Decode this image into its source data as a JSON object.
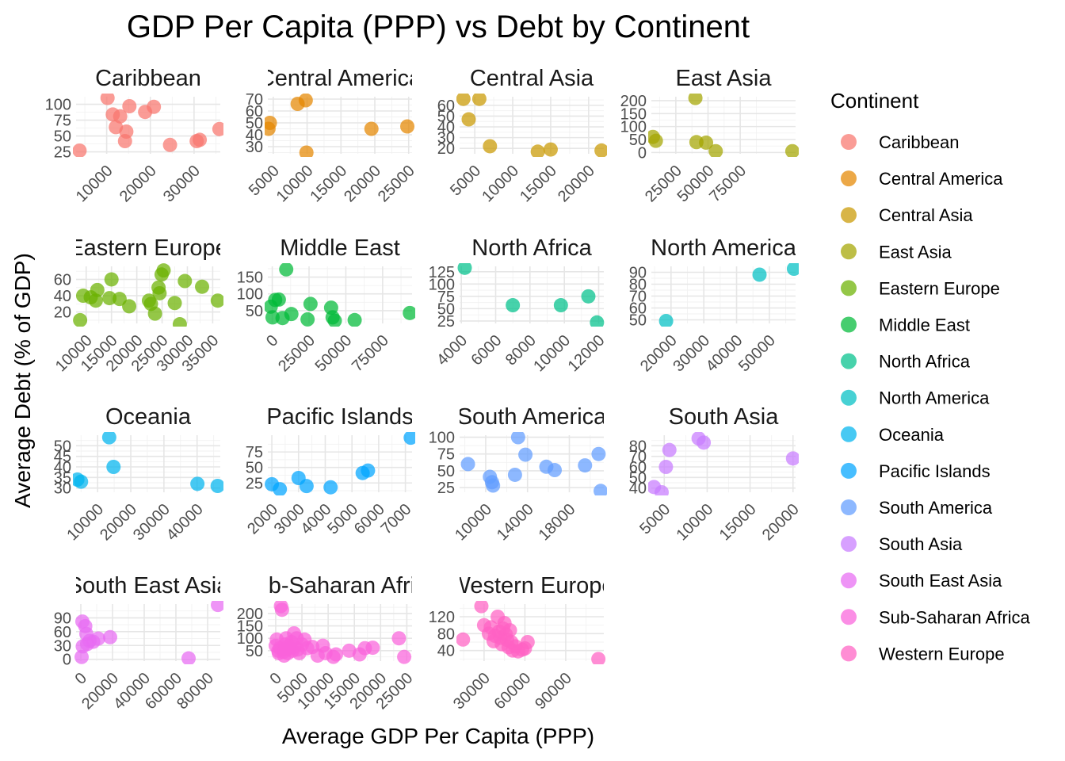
{
  "chart_data": {
    "type": "scatter",
    "title": "GDP Per Capita (PPP) vs Debt by Continent",
    "xlabel": "Average GDP Per Capita (PPP)",
    "ylabel": "Average Debt (% of GDP)",
    "legend_title": "Continent",
    "legend_position": "right",
    "grid": true,
    "facets": [
      {
        "name": "Caribbean",
        "color": "#F8766D",
        "xlim": [
          3000,
          36000
        ],
        "ylim": [
          22,
          112
        ],
        "xticks": [
          10000,
          20000,
          30000
        ],
        "yticks": [
          25,
          50,
          75,
          100
        ],
        "points": [
          [
            3800,
            27
          ],
          [
            10200,
            110
          ],
          [
            11400,
            84
          ],
          [
            12100,
            64
          ],
          [
            13100,
            81
          ],
          [
            14200,
            42
          ],
          [
            14500,
            57
          ],
          [
            15200,
            97
          ],
          [
            18800,
            88
          ],
          [
            20800,
            96
          ],
          [
            24500,
            36
          ],
          [
            30600,
            42
          ],
          [
            31300,
            44
          ],
          [
            35800,
            61
          ]
        ]
      },
      {
        "name": "Central America",
        "color": "#E58700",
        "xlim": [
          4200,
          25500
        ],
        "ylim": [
          24,
          72
        ],
        "xticks": [
          5000,
          10000,
          15000,
          20000,
          25000
        ],
        "yticks": [
          30,
          40,
          50,
          60,
          70
        ],
        "points": [
          [
            4300,
            45
          ],
          [
            4500,
            50
          ],
          [
            8600,
            66
          ],
          [
            9800,
            69
          ],
          [
            9900,
            25
          ],
          [
            19500,
            45
          ],
          [
            24800,
            47
          ]
        ]
      },
      {
        "name": "Central Asia",
        "color": "#C99800",
        "xlim": [
          3000,
          22000
        ],
        "ylim": [
          15,
          68
        ],
        "xticks": [
          5000,
          10000,
          15000,
          20000
        ],
        "yticks": [
          20,
          30,
          40,
          50,
          60
        ],
        "points": [
          [
            3500,
            66
          ],
          [
            4200,
            47
          ],
          [
            5600,
            66
          ],
          [
            7000,
            22
          ],
          [
            13300,
            17
          ],
          [
            15000,
            19
          ],
          [
            21700,
            18
          ]
        ]
      },
      {
        "name": "East Asia",
        "color": "#A3A500",
        "xlim": [
          6000,
          118000
        ],
        "ylim": [
          -5,
          215
        ],
        "xticks": [
          25000,
          50000,
          75000
        ],
        "yticks": [
          0,
          50,
          100,
          150,
          200
        ],
        "points": [
          [
            7200,
            60
          ],
          [
            9500,
            45
          ],
          [
            40200,
            210
          ],
          [
            41000,
            40
          ],
          [
            48500,
            38
          ],
          [
            56000,
            5
          ],
          [
            115500,
            5
          ]
        ]
      },
      {
        "name": "Eastern Europe",
        "color": "#6BB100",
        "xlim": [
          8000,
          36500
        ],
        "ylim": [
          6,
          76
        ],
        "xticks": [
          10000,
          15000,
          20000,
          25000,
          30000,
          35000
        ],
        "yticks": [
          20,
          40,
          60
        ],
        "points": [
          [
            8800,
            10
          ],
          [
            9400,
            40
          ],
          [
            10900,
            38
          ],
          [
            11900,
            34
          ],
          [
            12200,
            47
          ],
          [
            14600,
            37
          ],
          [
            15000,
            60
          ],
          [
            16600,
            36
          ],
          [
            18500,
            27
          ],
          [
            22400,
            34
          ],
          [
            22800,
            30
          ],
          [
            23600,
            18
          ],
          [
            24300,
            50
          ],
          [
            24500,
            43
          ],
          [
            24900,
            66
          ],
          [
            25300,
            71
          ],
          [
            27500,
            31
          ],
          [
            28500,
            5
          ],
          [
            29500,
            58
          ],
          [
            32900,
            51
          ],
          [
            36000,
            34
          ]
        ]
      },
      {
        "name": "Middle East",
        "color": "#00BA38",
        "xlim": [
          -3000,
          95000
        ],
        "ylim": [
          12,
          182
        ],
        "xticks": [
          0,
          25000,
          50000,
          75000
        ],
        "yticks": [
          50,
          100,
          150
        ],
        "points": [
          [
            -1000,
            62
          ],
          [
            200,
            30
          ],
          [
            2000,
            82
          ],
          [
            4500,
            83
          ],
          [
            7000,
            28
          ],
          [
            9500,
            173
          ],
          [
            13000,
            40
          ],
          [
            24000,
            24
          ],
          [
            26000,
            70
          ],
          [
            40000,
            59
          ],
          [
            41000,
            30
          ],
          [
            42500,
            20
          ],
          [
            56000,
            22
          ],
          [
            93500,
            43
          ]
        ]
      },
      {
        "name": "North Africa",
        "color": "#00C08B",
        "xlim": [
          3900,
          12300
        ],
        "ylim": [
          20,
          136
        ],
        "xticks": [
          4000,
          6000,
          8000,
          10000,
          12000
        ],
        "yticks": [
          25,
          50,
          75,
          100,
          125
        ],
        "points": [
          [
            4200,
            133
          ],
          [
            7000,
            57
          ],
          [
            9800,
            57
          ],
          [
            11400,
            75
          ],
          [
            11900,
            22
          ]
        ]
      },
      {
        "name": "North America",
        "color": "#00BFC4",
        "xlim": [
          14000,
          58000
        ],
        "ylim": [
          47,
          95
        ],
        "xticks": [
          20000,
          30000,
          40000,
          50000
        ],
        "yticks": [
          50,
          60,
          70,
          80,
          90
        ],
        "points": [
          [
            18500,
            49
          ],
          [
            47000,
            88
          ],
          [
            57500,
            93
          ]
        ]
      },
      {
        "name": "Oceania",
        "color": "#00B4EF",
        "xlim": [
          3500,
          47000
        ],
        "ylim": [
          28,
          55
        ],
        "xticks": [
          10000,
          20000,
          30000,
          40000
        ],
        "yticks": [
          30,
          35,
          40,
          45,
          50
        ],
        "points": [
          [
            3900,
            34
          ],
          [
            5000,
            33
          ],
          [
            13500,
            54
          ],
          [
            14800,
            40
          ],
          [
            40100,
            32
          ],
          [
            46200,
            31
          ]
        ]
      },
      {
        "name": "Pacific Islands",
        "color": "#00A5FF",
        "xlim": [
          1850,
          7250
        ],
        "ylim": [
          10,
          102
        ],
        "xticks": [
          2000,
          3000,
          4000,
          5000,
          6000,
          7000
        ],
        "yticks": [
          25,
          50,
          75
        ],
        "points": [
          [
            2000,
            23
          ],
          [
            2300,
            15
          ],
          [
            3000,
            33
          ],
          [
            3300,
            20
          ],
          [
            4200,
            18
          ],
          [
            5400,
            41
          ],
          [
            5600,
            45
          ],
          [
            7200,
            98
          ]
        ]
      },
      {
        "name": "South America",
        "color": "#7CAE00",
        "color_override": "#619CFF",
        "xlim": [
          7500,
          21300
        ],
        "ylim": [
          18,
          103
        ],
        "xticks": [
          10000,
          14000,
          18000
        ],
        "yticks": [
          25,
          50,
          75,
          100
        ],
        "points": [
          [
            8300,
            60
          ],
          [
            10400,
            41
          ],
          [
            10600,
            33
          ],
          [
            10700,
            28
          ],
          [
            12800,
            44
          ],
          [
            13100,
            100
          ],
          [
            13800,
            74
          ],
          [
            15800,
            56
          ],
          [
            16600,
            51
          ],
          [
            19500,
            58
          ],
          [
            20800,
            75
          ],
          [
            21000,
            20
          ]
        ]
      },
      {
        "name": "South Asia",
        "color": "#C77CFF",
        "xlim": [
          3500,
          20300
        ],
        "ylim": [
          36,
          90
        ],
        "xticks": [
          5000,
          10000,
          15000,
          20000
        ],
        "yticks": [
          40,
          50,
          60,
          70,
          80
        ],
        "points": [
          [
            3800,
            41
          ],
          [
            4700,
            36
          ],
          [
            5200,
            60
          ],
          [
            5600,
            76
          ],
          [
            9000,
            87
          ],
          [
            9600,
            83
          ],
          [
            20000,
            68
          ]
        ]
      },
      {
        "name": "South East Asia",
        "color": "#E76BF3",
        "xlim": [
          -3000,
          88000
        ],
        "ylim": [
          -4,
          120
        ],
        "xticks": [
          0,
          20000,
          40000,
          60000,
          80000
        ],
        "yticks": [
          0,
          30,
          60,
          90
        ],
        "points": [
          [
            500,
            5
          ],
          [
            1000,
            82
          ],
          [
            1200,
            28
          ],
          [
            2800,
            72
          ],
          [
            3500,
            55
          ],
          [
            4000,
            33
          ],
          [
            5500,
            40
          ],
          [
            7800,
            38
          ],
          [
            11000,
            45
          ],
          [
            18500,
            48
          ],
          [
            68000,
            2
          ],
          [
            86500,
            118
          ]
        ]
      },
      {
        "name": "Sub-Saharan Africa",
        "color": "#FA62DB",
        "xlim": [
          -1500,
          26000
        ],
        "ylim": [
          8,
          238
        ],
        "xticks": [
          0,
          5000,
          10000,
          15000,
          20000,
          25000
        ],
        "yticks": [
          50,
          100,
          150,
          200
        ],
        "points": [
          [
            0,
            70
          ],
          [
            200,
            95
          ],
          [
            500,
            50
          ],
          [
            600,
            40
          ],
          [
            800,
            60
          ],
          [
            1000,
            230
          ],
          [
            1200,
            215
          ],
          [
            1500,
            45
          ],
          [
            1600,
            30
          ],
          [
            1800,
            75
          ],
          [
            2000,
            100
          ],
          [
            2100,
            55
          ],
          [
            2300,
            40
          ],
          [
            2500,
            70
          ],
          [
            2700,
            60
          ],
          [
            3000,
            85
          ],
          [
            3200,
            50
          ],
          [
            3500,
            120
          ],
          [
            3600,
            65
          ],
          [
            4000,
            100
          ],
          [
            4200,
            55
          ],
          [
            4500,
            40
          ],
          [
            5000,
            75
          ],
          [
            5500,
            95
          ],
          [
            6000,
            60
          ],
          [
            7000,
            65
          ],
          [
            8000,
            30
          ],
          [
            9000,
            70
          ],
          [
            9500,
            40
          ],
          [
            11000,
            25
          ],
          [
            11500,
            35
          ],
          [
            14000,
            50
          ],
          [
            16000,
            35
          ],
          [
            17000,
            60
          ],
          [
            18500,
            62
          ],
          [
            23500,
            100
          ],
          [
            24500,
            25
          ]
        ]
      },
      {
        "name": "Western Europe",
        "color": "#FF61C3",
        "xlim": [
          12000,
          118000
        ],
        "ylim": [
          15,
          150
        ],
        "xticks": [
          30000,
          60000,
          90000
        ],
        "yticks": [
          40,
          80,
          120
        ],
        "points": [
          [
            14500,
            66
          ],
          [
            28000,
            145
          ],
          [
            30000,
            100
          ],
          [
            33500,
            80
          ],
          [
            35000,
            95
          ],
          [
            37000,
            62
          ],
          [
            38000,
            75
          ],
          [
            40000,
            120
          ],
          [
            41000,
            85
          ],
          [
            42000,
            70
          ],
          [
            43000,
            55
          ],
          [
            44000,
            92
          ],
          [
            45000,
            105
          ],
          [
            46000,
            78
          ],
          [
            47000,
            65
          ],
          [
            48000,
            48
          ],
          [
            49000,
            88
          ],
          [
            50000,
            60
          ],
          [
            51000,
            40
          ],
          [
            53000,
            50
          ],
          [
            55000,
            38
          ],
          [
            58000,
            42
          ],
          [
            60000,
            45
          ],
          [
            62000,
            60
          ],
          [
            114000,
            20
          ]
        ]
      }
    ]
  }
}
